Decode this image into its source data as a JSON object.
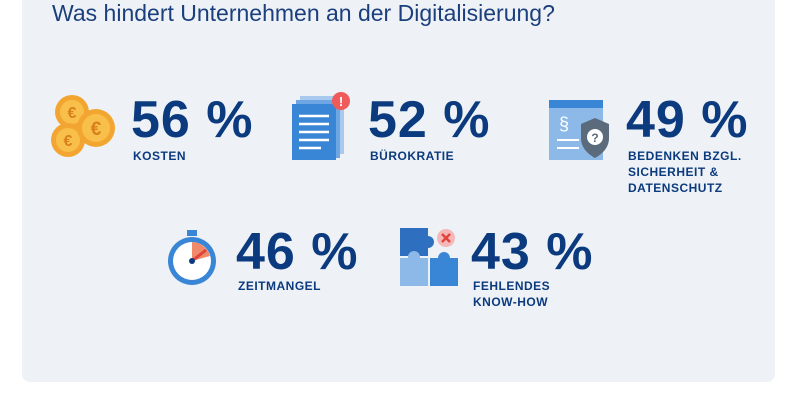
{
  "header": {
    "title": "Was hindert Unternehmen an der Digitalisierung?"
  },
  "items": [
    {
      "value": "56 %",
      "label": "KOSTEN"
    },
    {
      "value": "52 %",
      "label": "BÜROKRATIE"
    },
    {
      "value": "49 %",
      "label": "BEDENKEN BZGL.\nSICHERHEIT &\nDATENSCHUTZ"
    },
    {
      "value": "46 %",
      "label": "ZEITMANGEL"
    },
    {
      "value": "43 %",
      "label": "FEHLENDES\nKNOW-HOW"
    }
  ]
}
